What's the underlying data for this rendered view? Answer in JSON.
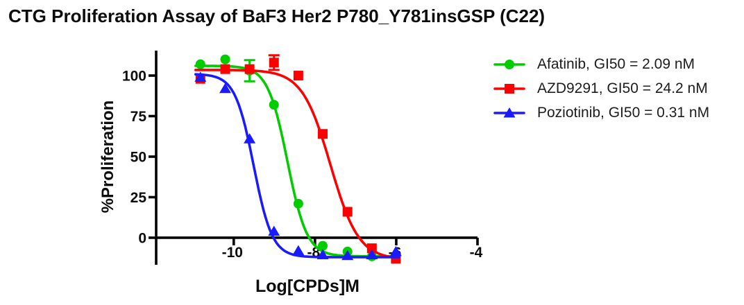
{
  "title": "CTG Proliferation Assay of BaF3 Her2 P780_Y781insGSP (C22)",
  "chart_data": {
    "type": "line",
    "title": "CTG Proliferation Assay of BaF3 Her2 P780_Y781insGSP (C22)",
    "xlabel": "Log[CPDs]M",
    "ylabel": "%Proliferation",
    "x_ticks": [
      -10,
      -8,
      -6,
      -4
    ],
    "y_ticks": [
      0,
      25,
      50,
      75,
      100
    ],
    "xlim": [
      -11.91,
      -4.0
    ],
    "ylim": [
      -16.7,
      115.4
    ],
    "grid": false,
    "legend_position": "right",
    "axis_color": "#000000",
    "series": [
      {
        "name": "Afatinib",
        "label": "Afatinib, GI50 = 2.09 nM",
        "gi50": "2.09 nM",
        "color": "#00CC00",
        "marker": "circle",
        "x": [
          -10.82,
          -10.21,
          -9.61,
          -9.01,
          -8.41,
          -7.81,
          -7.2,
          -6.6,
          -6.01
        ],
        "y": [
          107,
          110,
          103,
          82,
          21,
          -5,
          -8.5,
          -11.5,
          -12
        ],
        "yerr": [
          0,
          0,
          6.5,
          0,
          0,
          0,
          0,
          0,
          0
        ],
        "fit": {
          "top": 106,
          "bottom": -11.5,
          "log_gi50": -8.68,
          "hill": 1.8
        }
      },
      {
        "name": "AZD9291",
        "label": "AZD9291, GI50 = 24.2 nM",
        "gi50": "24.2 nM",
        "color": "#FF0000",
        "marker": "square",
        "x": [
          -10.82,
          -10.21,
          -9.61,
          -9.01,
          -8.41,
          -7.81,
          -7.2,
          -6.6,
          -6.01
        ],
        "y": [
          98,
          104,
          104,
          108,
          100,
          64,
          16,
          -6.5,
          -13
        ],
        "yerr": [
          0,
          0,
          0,
          4.5,
          0,
          0,
          0,
          0,
          0
        ],
        "fit": {
          "top": 103.5,
          "bottom": -13.5,
          "log_gi50": -7.62,
          "hill": 1.25
        }
      },
      {
        "name": "Poziotinib",
        "label": "Poziotinib, GI50 = 0.31 nM",
        "gi50": "0.31 nM",
        "color": "#1A1AFF",
        "marker": "triangle",
        "x": [
          -10.82,
          -10.21,
          -9.61,
          -9.01,
          -8.41,
          -7.81,
          -7.2,
          -6.6,
          -6.01
        ],
        "y": [
          99,
          92,
          61,
          4,
          -8,
          -10.5,
          -11,
          -10.5,
          -8.5
        ],
        "yerr": [
          0,
          0,
          0,
          0,
          0,
          0,
          0,
          0,
          0
        ],
        "fit": {
          "top": 101,
          "bottom": -12,
          "log_gi50": -9.51,
          "hill": 1.9
        }
      }
    ]
  }
}
